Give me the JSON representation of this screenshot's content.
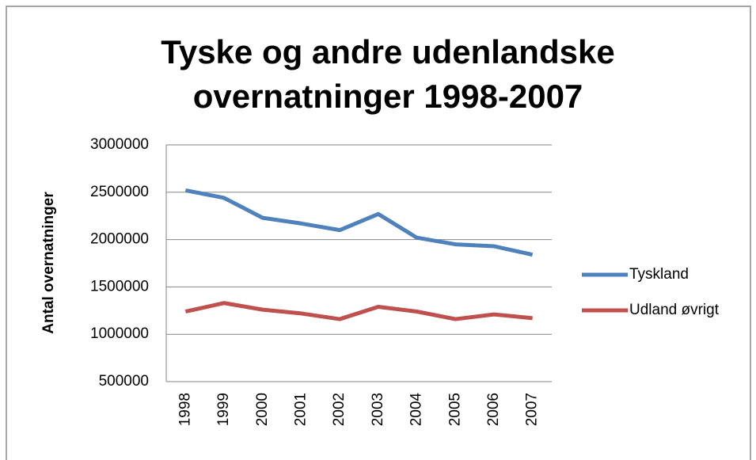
{
  "chart_data": {
    "type": "line",
    "title": "Tyske og andre udenlandske overnatninger 1998-2007",
    "y_label": "Antal overnatninger",
    "categories": [
      "1998",
      "1999",
      "2000",
      "2001",
      "2002",
      "2003",
      "2004",
      "2005",
      "2006",
      "2007"
    ],
    "series": [
      {
        "name": "Tyskland",
        "color": "#4f81bd",
        "values": [
          2520000,
          2440000,
          2230000,
          2170000,
          2100000,
          2270000,
          2020000,
          1950000,
          1930000,
          1840000
        ]
      },
      {
        "name": "Udland øvrigt",
        "color": "#c0504d",
        "values": [
          1240000,
          1330000,
          1260000,
          1220000,
          1160000,
          1290000,
          1240000,
          1160000,
          1210000,
          1170000
        ]
      }
    ],
    "ylim": [
      500000,
      3000000
    ],
    "yticks": [
      500000,
      1000000,
      1500000,
      2000000,
      2500000,
      3000000
    ],
    "grid": true,
    "legend": "right"
  }
}
